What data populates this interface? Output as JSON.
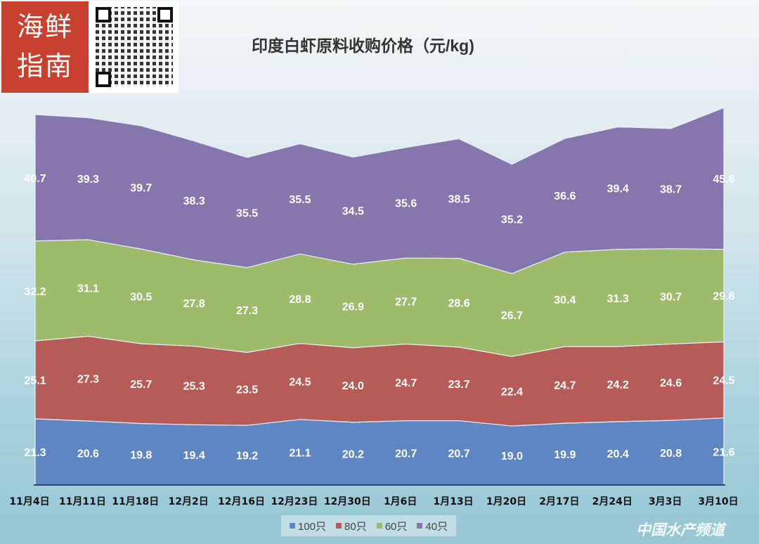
{
  "logo": {
    "text": "海鲜指南"
  },
  "watermark": "中国水产频道",
  "chart_data": {
    "type": "area",
    "stacked": true,
    "title": "印度白虾原料收购价格（元/kg)",
    "xlabel": "",
    "ylabel": "",
    "ylim": [
      0,
      122
    ],
    "grid": false,
    "legend_position": "bottom",
    "categories": [
      "11月4日",
      "11月11日",
      "11月18日",
      "12月2日",
      "12月16日",
      "12月23日",
      "12月30日",
      "1月6日",
      "1月13日",
      "1月20日",
      "2月17日",
      "2月24日",
      "3月3日",
      "3月10日"
    ],
    "series": [
      {
        "name": "100只",
        "color": "#5e86c2",
        "values": [
          21.3,
          20.6,
          19.8,
          19.4,
          19.2,
          21.1,
          20.2,
          20.7,
          20.7,
          19.0,
          19.9,
          20.4,
          20.8,
          21.6
        ]
      },
      {
        "name": "80只",
        "color": "#b65b58",
        "values": [
          25.1,
          27.3,
          25.7,
          25.3,
          23.5,
          24.5,
          24.0,
          24.7,
          23.7,
          22.4,
          24.7,
          24.2,
          24.6,
          24.5
        ]
      },
      {
        "name": "60只",
        "color": "#9dbb6b",
        "values": [
          32.2,
          31.1,
          30.5,
          27.8,
          27.3,
          28.8,
          26.9,
          27.7,
          28.6,
          26.7,
          30.4,
          31.3,
          30.7,
          29.8
        ]
      },
      {
        "name": "40只",
        "color": "#8576ad",
        "values": [
          40.7,
          39.3,
          39.7,
          38.3,
          35.5,
          35.5,
          34.5,
          35.6,
          38.5,
          35.2,
          36.6,
          39.4,
          38.7,
          45.6
        ]
      }
    ]
  }
}
